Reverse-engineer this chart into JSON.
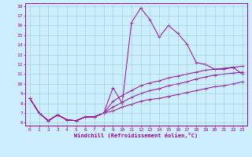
{
  "xlabel": "Windchill (Refroidissement éolien,°C)",
  "background_color": "#cceeff",
  "line_color": "#990099",
  "grid_color": "#aadddd",
  "xlim": [
    -0.5,
    23.5
  ],
  "ylim": [
    5.7,
    18.3
  ],
  "yticks": [
    6,
    7,
    8,
    9,
    10,
    11,
    12,
    13,
    14,
    15,
    16,
    17,
    18
  ],
  "xticks": [
    0,
    1,
    2,
    3,
    4,
    5,
    6,
    7,
    8,
    9,
    10,
    11,
    12,
    13,
    14,
    15,
    16,
    17,
    18,
    19,
    20,
    21,
    22,
    23
  ],
  "line1_x": [
    0,
    1,
    2,
    3,
    4,
    5,
    6,
    7,
    8,
    9,
    10,
    11,
    12,
    13,
    14,
    15,
    16,
    17,
    18,
    19,
    20,
    21,
    22,
    23
  ],
  "line1_y": [
    8.5,
    7.0,
    6.2,
    6.8,
    6.3,
    6.2,
    6.6,
    6.6,
    7.0,
    9.6,
    8.0,
    16.3,
    17.8,
    16.6,
    14.8,
    16.0,
    15.2,
    14.1,
    12.2,
    12.0,
    11.5,
    11.5,
    11.7,
    11.0
  ],
  "line2_x": [
    0,
    1,
    2,
    3,
    4,
    5,
    6,
    7,
    8,
    9,
    10,
    11,
    12,
    13,
    14,
    15,
    16,
    17,
    18,
    19,
    20,
    21,
    22,
    23
  ],
  "line2_y": [
    8.5,
    7.0,
    6.2,
    6.8,
    6.3,
    6.2,
    6.6,
    6.6,
    7.0,
    8.2,
    8.8,
    9.3,
    9.8,
    10.1,
    10.3,
    10.6,
    10.8,
    11.0,
    11.2,
    11.4,
    11.5,
    11.6,
    11.7,
    11.8
  ],
  "line3_x": [
    0,
    1,
    2,
    3,
    4,
    5,
    6,
    7,
    8,
    9,
    10,
    11,
    12,
    13,
    14,
    15,
    16,
    17,
    18,
    19,
    20,
    21,
    22,
    23
  ],
  "line3_y": [
    8.5,
    7.0,
    6.2,
    6.8,
    6.3,
    6.2,
    6.6,
    6.6,
    7.0,
    7.6,
    8.1,
    8.6,
    9.0,
    9.3,
    9.5,
    9.8,
    10.0,
    10.2,
    10.5,
    10.7,
    10.9,
    11.0,
    11.1,
    11.2
  ],
  "line4_x": [
    0,
    1,
    2,
    3,
    4,
    5,
    6,
    7,
    8,
    9,
    10,
    11,
    12,
    13,
    14,
    15,
    16,
    17,
    18,
    19,
    20,
    21,
    22,
    23
  ],
  "line4_y": [
    8.5,
    7.0,
    6.2,
    6.8,
    6.3,
    6.2,
    6.6,
    6.6,
    7.0,
    7.2,
    7.6,
    7.9,
    8.2,
    8.4,
    8.5,
    8.7,
    8.9,
    9.1,
    9.3,
    9.5,
    9.7,
    9.8,
    10.0,
    10.2
  ]
}
